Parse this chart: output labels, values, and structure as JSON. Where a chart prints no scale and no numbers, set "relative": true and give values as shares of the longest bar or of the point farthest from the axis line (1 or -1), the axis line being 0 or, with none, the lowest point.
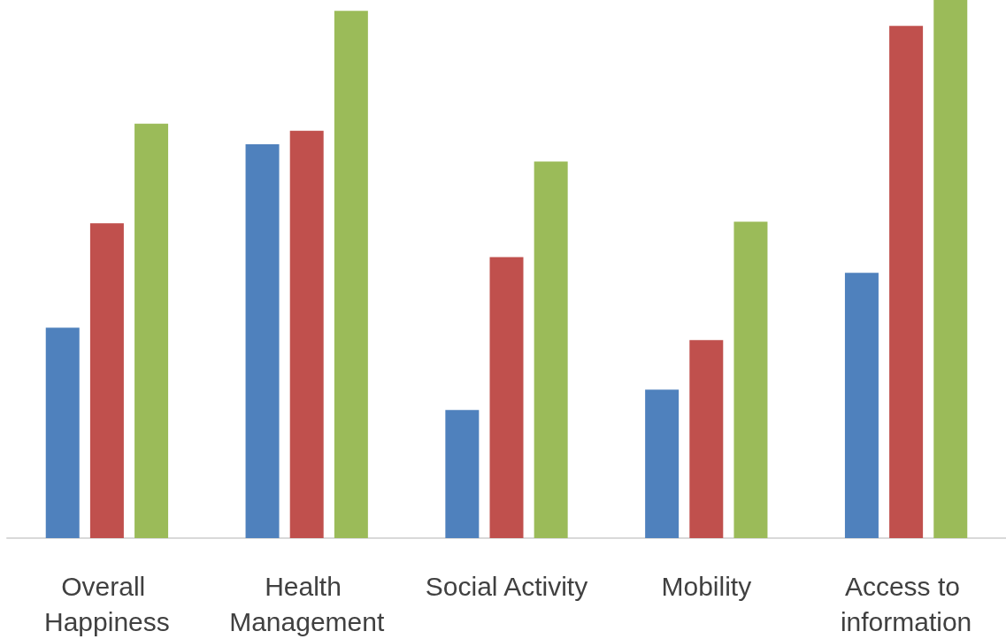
{
  "chart_data": {
    "type": "bar",
    "relative": true,
    "categories": [
      "Overall Happiness",
      "Health Management",
      "Social Activity",
      "Mobility",
      "Access to information"
    ],
    "series": [
      {
        "color": "#4f81bd",
        "values": [
          0.391,
          0.732,
          0.238,
          0.276,
          0.493
        ]
      },
      {
        "color": "#c0504d",
        "values": [
          0.585,
          0.757,
          0.522,
          0.368,
          0.952
        ]
      },
      {
        "color": "#9bbb59",
        "values": [
          0.77,
          0.98,
          0.7,
          0.588,
          1
        ]
      }
    ]
  }
}
